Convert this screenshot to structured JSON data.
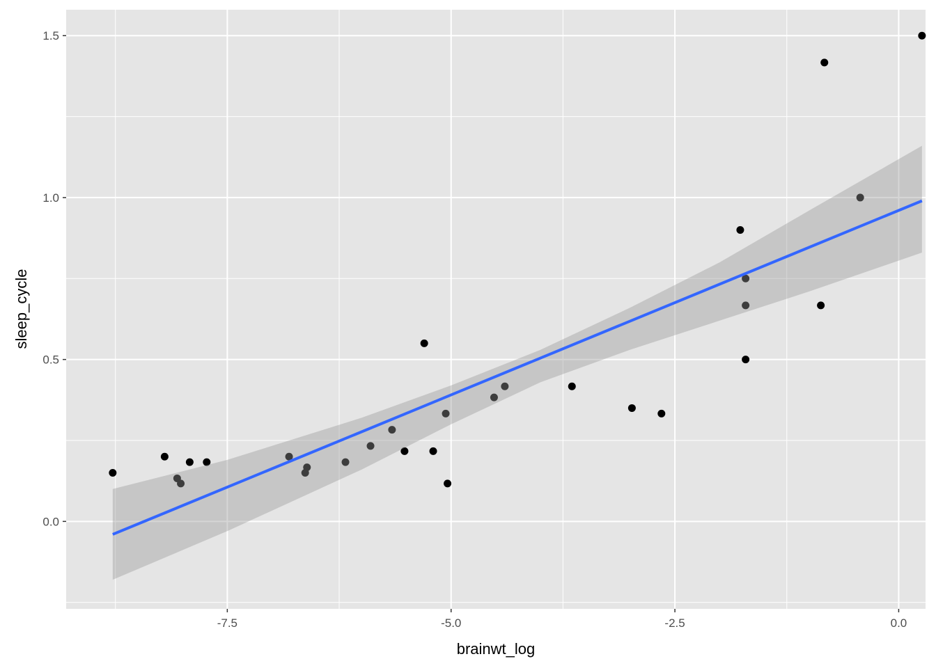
{
  "chart_data": {
    "type": "scatter",
    "title": "",
    "xlabel": "brainwt_log",
    "ylabel": "sleep_cycle",
    "xlim": [
      -9.3,
      0.3
    ],
    "ylim": [
      -0.27,
      1.58
    ],
    "x_ticks": [
      -7.5,
      -5.0,
      -2.5,
      0.0
    ],
    "x_tick_labels": [
      "-7.5",
      "-5.0",
      "-2.5",
      "0.0"
    ],
    "y_ticks": [
      0.0,
      0.5,
      1.0,
      1.5
    ],
    "y_tick_labels": [
      "0.0",
      "0.5",
      "1.0",
      "1.5"
    ],
    "grid": true,
    "legend": "none",
    "points": [
      {
        "x": -8.78,
        "y": 0.15
      },
      {
        "x": -8.2,
        "y": 0.2
      },
      {
        "x": -8.06,
        "y": 0.133
      },
      {
        "x": -8.02,
        "y": 0.117
      },
      {
        "x": -7.92,
        "y": 0.183
      },
      {
        "x": -7.73,
        "y": 0.183
      },
      {
        "x": -6.81,
        "y": 0.2
      },
      {
        "x": -6.63,
        "y": 0.15
      },
      {
        "x": -6.61,
        "y": 0.167
      },
      {
        "x": -6.18,
        "y": 0.183
      },
      {
        "x": -5.9,
        "y": 0.233
      },
      {
        "x": -5.66,
        "y": 0.283
      },
      {
        "x": -5.52,
        "y": 0.217
      },
      {
        "x": -5.3,
        "y": 0.55
      },
      {
        "x": -5.2,
        "y": 0.217
      },
      {
        "x": -5.06,
        "y": 0.333
      },
      {
        "x": -5.04,
        "y": 0.117
      },
      {
        "x": -4.52,
        "y": 0.383
      },
      {
        "x": -4.4,
        "y": 0.417
      },
      {
        "x": -3.65,
        "y": 0.417
      },
      {
        "x": -2.98,
        "y": 0.35
      },
      {
        "x": -2.65,
        "y": 0.333
      },
      {
        "x": -1.77,
        "y": 0.9
      },
      {
        "x": -1.71,
        "y": 0.75
      },
      {
        "x": -1.71,
        "y": 0.667
      },
      {
        "x": -1.71,
        "y": 0.5
      },
      {
        "x": -0.87,
        "y": 0.667
      },
      {
        "x": -0.83,
        "y": 1.417
      },
      {
        "x": -0.43,
        "y": 1.0
      },
      {
        "x": 0.26,
        "y": 1.5
      }
    ],
    "fit_line": {
      "color": "#3366ff",
      "x": [
        -8.78,
        0.26
      ],
      "y": [
        -0.04,
        0.99
      ]
    },
    "confidence_band": {
      "color": "#999999",
      "x": [
        -8.78,
        -7.5,
        -6.0,
        -5.0,
        -4.0,
        -3.0,
        -2.0,
        -1.0,
        0.26
      ],
      "upper": [
        0.1,
        0.19,
        0.32,
        0.42,
        0.53,
        0.66,
        0.8,
        0.96,
        1.16
      ],
      "lower": [
        -0.18,
        -0.03,
        0.16,
        0.3,
        0.43,
        0.53,
        0.62,
        0.71,
        0.83
      ]
    },
    "colors": {
      "panel_background": "#e5e5e5",
      "grid": "#ffffff",
      "points": "#000000"
    }
  }
}
